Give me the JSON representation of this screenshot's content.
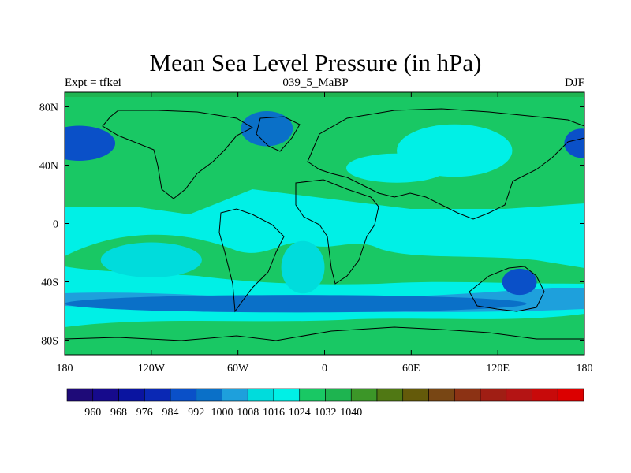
{
  "chart_data": {
    "type": "heatmap",
    "title": "Mean Sea Level Pressure (in hPa)",
    "left_string": "Expt = tfkei",
    "center_string": "039_5_MaBP",
    "right_string": "DJF",
    "projection": "cylindrical equidistant",
    "x_range": [
      -180,
      180
    ],
    "y_range": [
      -90,
      90
    ],
    "x_ticks": [
      {
        "value": -180,
        "label": "180"
      },
      {
        "value": -120,
        "label": "120W"
      },
      {
        "value": -60,
        "label": "60W"
      },
      {
        "value": 0,
        "label": "0"
      },
      {
        "value": 60,
        "label": "60E"
      },
      {
        "value": 120,
        "label": "120E"
      },
      {
        "value": 180,
        "label": "180"
      }
    ],
    "y_ticks": [
      {
        "value": 80,
        "label": "80N"
      },
      {
        "value": 40,
        "label": "40N"
      },
      {
        "value": 0,
        "label": "0"
      },
      {
        "value": -40,
        "label": "40S"
      },
      {
        "value": -80,
        "label": "80S"
      }
    ],
    "colorbar": {
      "colors": [
        "#1e0a78",
        "#160a8c",
        "#0a14a0",
        "#0a28b4",
        "#0a50c8",
        "#0a70c8",
        "#1ea0dc",
        "#00dcdc",
        "#00f0e6",
        "#19c864",
        "#1eb450",
        "#3c9628",
        "#507814",
        "#645a0a",
        "#784614",
        "#8c3214",
        "#a01e14",
        "#b41414",
        "#c80a0a",
        "#dc0000"
      ],
      "labels": [
        {
          "value": 960,
          "label": "960"
        },
        {
          "value": 968,
          "label": "968"
        },
        {
          "value": 976,
          "label": "976"
        },
        {
          "value": 984,
          "label": "984"
        },
        {
          "value": 992,
          "label": "992"
        },
        {
          "value": 1000,
          "label": "1000"
        },
        {
          "value": 1008,
          "label": "1008"
        },
        {
          "value": 1016,
          "label": "1016"
        },
        {
          "value": 1024,
          "label": "1024"
        },
        {
          "value": 1032,
          "label": "1032"
        },
        {
          "value": 1040,
          "label": "1040"
        }
      ]
    },
    "features": [
      {
        "name": "aleutian-low",
        "pressure_hPa": 990,
        "lon": -170,
        "lat": 55,
        "r_lon": 25,
        "r_lat": 12
      },
      {
        "name": "aleutian-low-west",
        "pressure_hPa": 990,
        "lon": 178,
        "lat": 55,
        "r_lon": 12,
        "r_lat": 10
      },
      {
        "name": "icelandic-low",
        "pressure_hPa": 996,
        "lon": -40,
        "lat": 65,
        "r_lon": 18,
        "r_lat": 12
      },
      {
        "name": "siberian-high",
        "pressure_hPa": 1018,
        "lon": 90,
        "lat": 50,
        "r_lon": 40,
        "r_lat": 18
      },
      {
        "name": "asian-high-extension",
        "pressure_hPa": 1016,
        "lon": 50,
        "lat": 38,
        "r_lon": 35,
        "r_lat": 10
      },
      {
        "name": "australian-low",
        "pressure_hPa": 990,
        "lon": 135,
        "lat": -40,
        "r_lon": 12,
        "r_lat": 9
      },
      {
        "name": "southern-ocean-trough",
        "pressure_hPa": 994,
        "lon": -20,
        "lat": -55,
        "r_lon": 160,
        "r_lat": 6
      },
      {
        "name": "south-pacific-high",
        "pressure_hPa": 1010,
        "lon": -120,
        "lat": -25,
        "r_lon": 35,
        "r_lat": 12
      },
      {
        "name": "south-atlantic-high",
        "pressure_hPa": 1010,
        "lon": -15,
        "lat": -30,
        "r_lon": 15,
        "r_lat": 18
      }
    ]
  }
}
